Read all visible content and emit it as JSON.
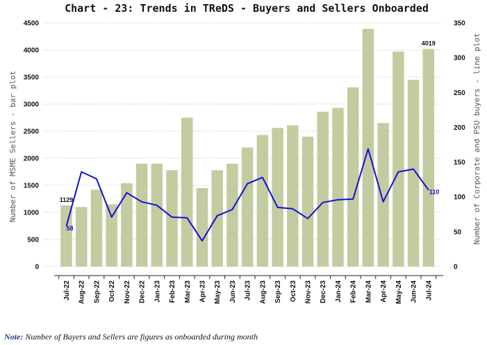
{
  "chart_data": {
    "type": "bar+line",
    "title": "Chart - 23: Trends in TReDS - Buyers and Sellers Onboarded",
    "categories": [
      "Jul-22",
      "Aug-22",
      "Sep-22",
      "Oct-22",
      "Nov-22",
      "Dec-22",
      "Jan-23",
      "Feb-23",
      "Mar-23",
      "Apr-23",
      "May-23",
      "Jun-23",
      "Jul-23",
      "Aug-23",
      "Sep-23",
      "Oct-23",
      "Nov-23",
      "Dec-23",
      "Jan-24",
      "Feb-24",
      "Mar-24",
      "Apr-24",
      "May-24",
      "Jun-24",
      "Jul-24"
    ],
    "series": [
      {
        "type": "bar",
        "axis": "left",
        "values": [
          1129,
          1100,
          1420,
          1150,
          1540,
          1900,
          1900,
          1780,
          2750,
          1450,
          1780,
          1900,
          2200,
          2430,
          2560,
          2610,
          2400,
          2860,
          2930,
          3310,
          4390,
          2650,
          3970,
          3450,
          4019
        ],
        "color": "#c2cca0"
      },
      {
        "type": "line",
        "axis": "right",
        "values": [
          58,
          136,
          126,
          71,
          106,
          93,
          88,
          71,
          70,
          37,
          73,
          82,
          119,
          128,
          85,
          83,
          69,
          92,
          96,
          97,
          169,
          93,
          136,
          140,
          110
        ],
        "color": "#1010d8"
      }
    ],
    "data_labels": [
      {
        "series": 0,
        "index": 0,
        "text": "1129"
      },
      {
        "series": 0,
        "index": 24,
        "text": "4019"
      },
      {
        "series": 1,
        "index": 0,
        "text": "58"
      },
      {
        "series": 1,
        "index": 24,
        "text": "110"
      }
    ],
    "ylabel": "Number of MSME Sellers - bar plot",
    "y2label": "Number of Corporate and PSU buyers - line plot",
    "ylim": [
      0,
      4500
    ],
    "y2lim": [
      0,
      350
    ],
    "yticks": [
      "0",
      "500",
      "1000",
      "1500",
      "2000",
      "2500",
      "3000",
      "3500",
      "4000",
      "4500"
    ],
    "y2ticks": [
      "0",
      "50",
      "100",
      "150",
      "200",
      "250",
      "300",
      "350"
    ],
    "grid": "horizontal dotted",
    "legend": "none"
  },
  "note": {
    "label": "Note:",
    "text": "Number of Buyers and Sellers are figures as onboarded during month"
  }
}
